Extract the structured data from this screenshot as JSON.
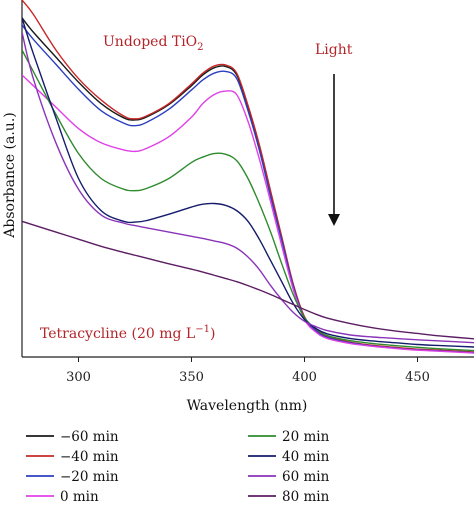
{
  "chart_data": {
    "type": "line",
    "title": "",
    "xlabel": "Wavelength (nm)",
    "ylabel": "Absorbance (a.u.)",
    "xlim": [
      275,
      475
    ],
    "ylim": [
      0,
      1
    ],
    "xticks": [
      300,
      350,
      400,
      450
    ],
    "yticks_shown": false,
    "grid": false,
    "legend_position": "bottom",
    "annotations": {
      "title_in_plot": "Undoped TiO",
      "title_in_plot_sub": "2",
      "light_label": "Light",
      "compound_label": "Tetracycline (20 mg L",
      "compound_label_sup": "−1",
      "compound_label_end": ")"
    },
    "x": [
      275,
      280,
      290,
      300,
      310,
      320,
      325,
      330,
      340,
      350,
      355,
      360,
      365,
      370,
      375,
      380,
      385,
      390,
      395,
      400,
      405,
      410,
      420,
      430,
      440,
      450,
      460,
      475
    ],
    "series": [
      {
        "name": "−60 min",
        "color": "#1a1a1a",
        "values": [
          0.95,
          0.91,
          0.84,
          0.77,
          0.71,
          0.67,
          0.664,
          0.672,
          0.707,
          0.76,
          0.79,
          0.81,
          0.814,
          0.79,
          0.7,
          0.59,
          0.46,
          0.33,
          0.2,
          0.11,
          0.075,
          0.056,
          0.04,
          0.032,
          0.026,
          0.021,
          0.018,
          0.013
        ]
      },
      {
        "name": "−40 min",
        "color": "#c62828",
        "values": [
          1.0,
          0.96,
          0.86,
          0.78,
          0.72,
          0.675,
          0.667,
          0.675,
          0.71,
          0.765,
          0.795,
          0.815,
          0.818,
          0.795,
          0.705,
          0.595,
          0.465,
          0.335,
          0.205,
          0.113,
          0.077,
          0.058,
          0.042,
          0.033,
          0.027,
          0.022,
          0.019,
          0.014
        ]
      },
      {
        "name": "−20 min",
        "color": "#2b3fbf",
        "values": [
          0.93,
          0.89,
          0.82,
          0.75,
          0.69,
          0.655,
          0.648,
          0.657,
          0.694,
          0.748,
          0.776,
          0.795,
          0.8,
          0.78,
          0.69,
          0.58,
          0.45,
          0.325,
          0.198,
          0.108,
          0.074,
          0.055,
          0.04,
          0.031,
          0.025,
          0.02,
          0.017,
          0.012
        ]
      },
      {
        "name": "0 min",
        "color": "#e040e8",
        "values": [
          0.79,
          0.76,
          0.7,
          0.64,
          0.6,
          0.58,
          0.576,
          0.584,
          0.617,
          0.672,
          0.71,
          0.735,
          0.745,
          0.735,
          0.66,
          0.555,
          0.435,
          0.31,
          0.19,
          0.105,
          0.07,
          0.052,
          0.038,
          0.03,
          0.024,
          0.019,
          0.016,
          0.011
        ]
      },
      {
        "name": "20 min",
        "color": "#2e8b2e",
        "values": [
          0.86,
          0.8,
          0.68,
          0.57,
          0.5,
          0.47,
          0.466,
          0.472,
          0.5,
          0.545,
          0.56,
          0.57,
          0.568,
          0.55,
          0.5,
          0.43,
          0.35,
          0.26,
          0.175,
          0.11,
          0.08,
          0.06,
          0.046,
          0.038,
          0.032,
          0.027,
          0.023,
          0.018
        ]
      },
      {
        "name": "40 min",
        "color": "#141c6b",
        "values": [
          0.95,
          0.85,
          0.67,
          0.5,
          0.41,
          0.38,
          0.378,
          0.382,
          0.4,
          0.42,
          0.428,
          0.43,
          0.425,
          0.41,
          0.38,
          0.33,
          0.27,
          0.21,
          0.15,
          0.105,
          0.08,
          0.065,
          0.052,
          0.045,
          0.04,
          0.035,
          0.032,
          0.028
        ]
      },
      {
        "name": "60 min",
        "color": "#8a35b8",
        "values": [
          0.91,
          0.78,
          0.6,
          0.47,
          0.398,
          0.375,
          0.368,
          0.362,
          0.35,
          0.338,
          0.332,
          0.325,
          0.318,
          0.305,
          0.28,
          0.245,
          0.2,
          0.16,
          0.125,
          0.1,
          0.085,
          0.074,
          0.062,
          0.056,
          0.052,
          0.048,
          0.045,
          0.04
        ]
      },
      {
        "name": "80 min",
        "color": "#5c1e63",
        "values": [
          0.38,
          0.37,
          0.35,
          0.33,
          0.31,
          0.293,
          0.285,
          0.277,
          0.261,
          0.246,
          0.238,
          0.229,
          0.22,
          0.211,
          0.2,
          0.188,
          0.175,
          0.161,
          0.147,
          0.133,
          0.12,
          0.109,
          0.094,
          0.082,
          0.073,
          0.066,
          0.059,
          0.051
        ]
      }
    ]
  }
}
